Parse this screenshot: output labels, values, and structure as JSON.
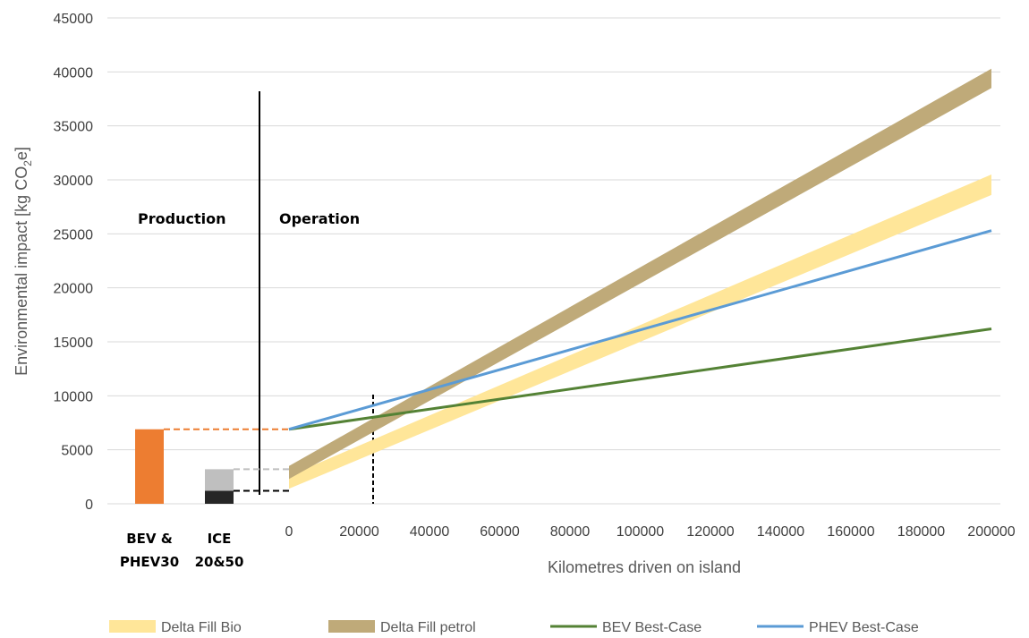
{
  "chart_data": {
    "type": "line",
    "ylabel": "Environmental impact  [kg CO",
    "ylabel_sub": "2",
    "ylabel_end": "e]",
    "xlabel": "Kilometres driven on island",
    "ylim": [
      0,
      45000
    ],
    "y_ticks": [
      "0",
      "5000",
      "10000",
      "15000",
      "20000",
      "25000",
      "30000",
      "35000",
      "40000",
      "45000"
    ],
    "xlim": [
      0,
      200000
    ],
    "x_ticks": [
      "0",
      "20000",
      "40000",
      "60000",
      "80000",
      "100000",
      "120000",
      "140000",
      "160000",
      "180000",
      "200000"
    ],
    "grid": true,
    "legend_position": "bottom",
    "section_labels": {
      "production": "Production",
      "operation": "Operation"
    },
    "production_bars": [
      {
        "label": [
          "BEV &",
          "PHEV30"
        ],
        "value": 6900,
        "color": "#ED7D31"
      },
      {
        "label": [
          "ICE",
          "20&50"
        ],
        "segments": [
          {
            "value": 1200,
            "color": "#262626"
          },
          {
            "value": 3200,
            "color": "#BFBFBF"
          }
        ]
      }
    ],
    "series": [
      {
        "name": "Delta Fill Bio",
        "kind": "band",
        "color": "#FFE699",
        "x": [
          0,
          200000
        ],
        "lower": [
          1400,
          28600
        ],
        "upper": [
          2600,
          30500
        ]
      },
      {
        "name": "Delta Fill petrol",
        "kind": "band",
        "color": "#BFAA79",
        "x": [
          0,
          200000
        ],
        "lower": [
          2300,
          38500
        ],
        "upper": [
          3500,
          40300
        ]
      },
      {
        "name": "BEV Best-Case",
        "kind": "line",
        "color": "#548235",
        "x": [
          0,
          200000
        ],
        "values": [
          6900,
          16200
        ]
      },
      {
        "name": "PHEV Best-Case",
        "kind": "line",
        "color": "#5B9BD5",
        "x": [
          0,
          200000
        ],
        "values": [
          6900,
          25300
        ]
      }
    ]
  }
}
